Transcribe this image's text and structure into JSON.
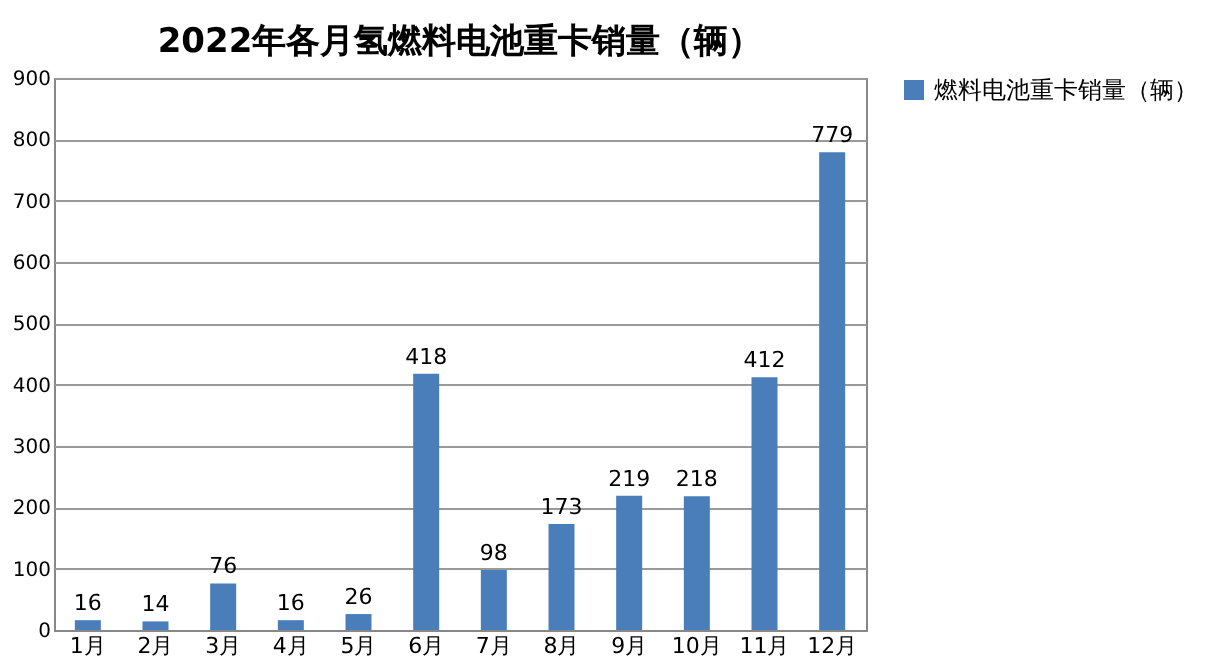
{
  "chart_data": {
    "type": "bar",
    "title": "2022年各月氢燃料电池重卡销量（辆）",
    "categories": [
      "1月",
      "2月",
      "3月",
      "4月",
      "5月",
      "6月",
      "7月",
      "8月",
      "9月",
      "10月",
      "11月",
      "12月"
    ],
    "series": [
      {
        "name": "燃料电池重卡销量（辆）",
        "color": "#4a7ebb",
        "values": [
          16,
          14,
          76,
          16,
          26,
          418,
          98,
          173,
          219,
          218,
          412,
          779
        ]
      }
    ],
    "ylim": [
      0,
      900
    ],
    "yticks": [
      0,
      100,
      200,
      300,
      400,
      500,
      600,
      700,
      800,
      900
    ],
    "grid": "y",
    "legend": "right",
    "data_labels": true
  }
}
